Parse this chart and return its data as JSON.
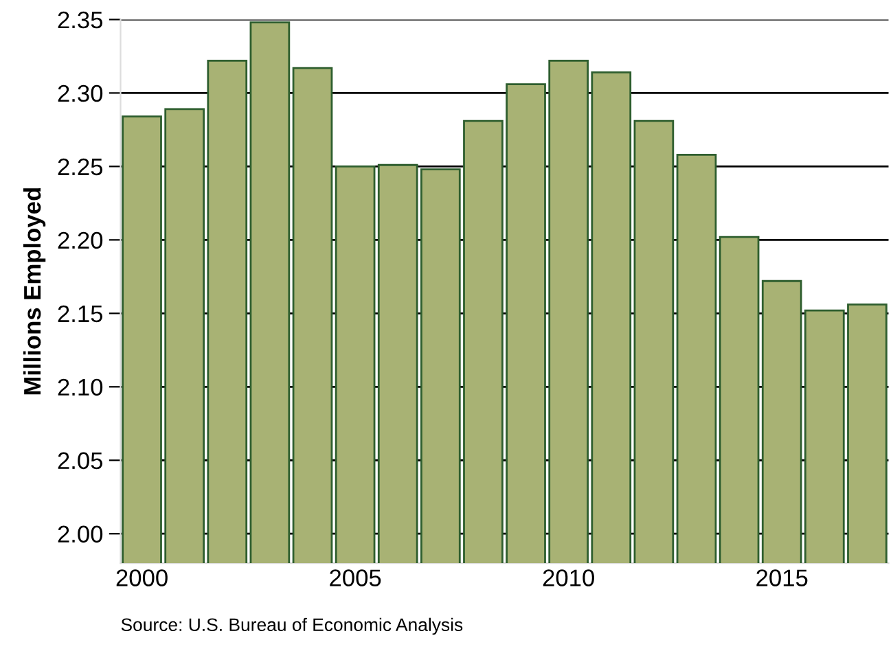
{
  "chart_data": {
    "type": "bar",
    "ylabel": "Millions Employed",
    "x": [
      2000,
      2001,
      2002,
      2003,
      2004,
      2005,
      2006,
      2007,
      2008,
      2009,
      2010,
      2011,
      2012,
      2013,
      2014,
      2015,
      2016,
      2017
    ],
    "series": [
      {
        "color": "#a8b274",
        "values": [
          2.284,
          2.289,
          2.322,
          2.348,
          2.317,
          2.25,
          2.251,
          2.248,
          2.281,
          2.306,
          2.322,
          2.314,
          2.281,
          2.258,
          2.202,
          2.172,
          2.152,
          2.156
        ]
      }
    ],
    "xlim": [
      1999.5,
      2017.5
    ],
    "xticks": [
      2000,
      2005,
      2010,
      2015
    ],
    "ylim": [
      1.98,
      2.35
    ],
    "yticks": [
      {
        "value": 2.0,
        "label": "2.00"
      },
      {
        "value": 2.05,
        "label": "2.05"
      },
      {
        "value": 2.1,
        "label": "2.10"
      },
      {
        "value": 2.15,
        "label": "2.15"
      },
      {
        "value": 2.2,
        "label": "2.20"
      },
      {
        "value": 2.25,
        "label": "2.25"
      },
      {
        "value": 2.3,
        "label": "2.30"
      },
      {
        "value": 2.35,
        "label": "2.35"
      }
    ],
    "grid": "y",
    "annotations": [
      "Source: U.S. Bureau of Economic Analysis"
    ]
  }
}
